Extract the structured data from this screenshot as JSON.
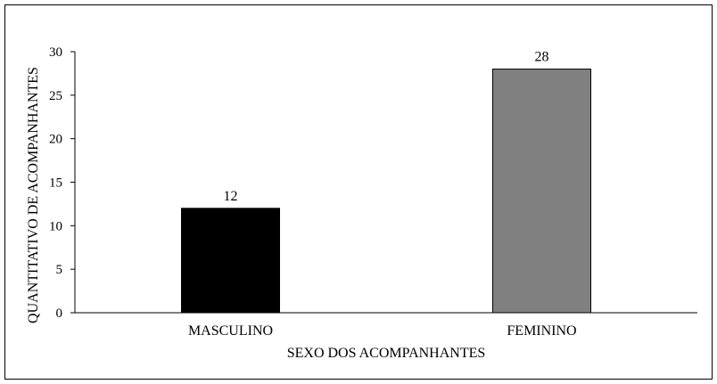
{
  "chart_data": {
    "type": "bar",
    "title": "",
    "xlabel": "SEXO DOS ACOMPANHANTES",
    "ylabel": "QUANTITATIVO  DE ACOMPANHANTES",
    "categories": [
      "MASCULINO",
      "FEMININO"
    ],
    "values": [
      12,
      28
    ],
    "data_labels": [
      "12",
      "28"
    ],
    "bar_colors": [
      "#000000",
      "#808080"
    ],
    "ylim": [
      0,
      30
    ],
    "yticks": [
      0,
      5,
      10,
      15,
      20,
      25,
      30
    ],
    "grid": false,
    "legend": "none"
  }
}
